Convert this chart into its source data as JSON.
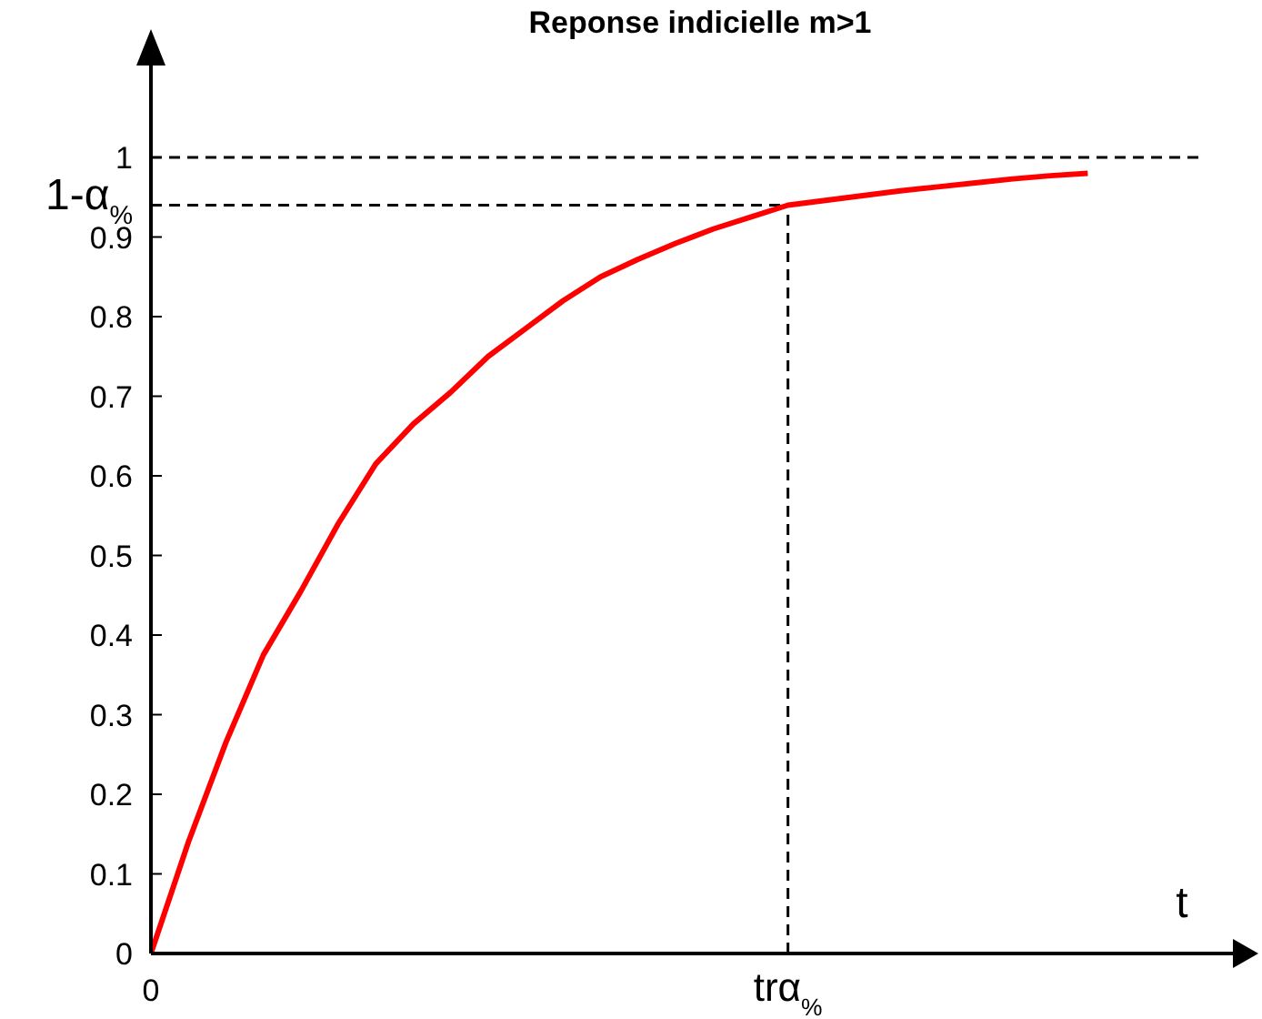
{
  "chart_data": {
    "type": "line",
    "title": "Reponse indicielle m>1",
    "xlabel": "t",
    "categories": [
      "0",
      null,
      null,
      null,
      null,
      null,
      null,
      null,
      null,
      null,
      null,
      null,
      null,
      null,
      null,
      null,
      null,
      "trα$_{%}$",
      null,
      null,
      null,
      null,
      null,
      null,
      null,
      null,
      null,
      null,
      null
    ],
    "series": [
      {
        "color": "#ff0000",
        "values": [
          0,
          0.14,
          0.265,
          0.375,
          0.455,
          0.54,
          0.615,
          0.665,
          0.705,
          0.75,
          0.785,
          0.82,
          0.85,
          0.872,
          0.892,
          0.91,
          0.925,
          0.94,
          0.946,
          0.952,
          0.958,
          0.963,
          0.968,
          0.973,
          0.977,
          0.98,
          null,
          null,
          null
        ]
      }
    ],
    "ylim": [
      0,
      1.12
    ],
    "yticks": [
      0,
      0.1,
      0.2,
      0.3,
      0.4,
      0.5,
      0.6,
      0.7,
      0.8,
      0.9,
      {
        "value": 0.94,
        "label": "1-α$_{%}$"
      },
      1
    ],
    "ref_lines": [
      {
        "axis": "y",
        "value": 1,
        "line_style": "dashed"
      },
      {
        "axis": "y",
        "value": 0.94,
        "line_style": "dashed"
      },
      {
        "axis": "x",
        "value": "trα$_{%}$",
        "line_style": "dashed"
      }
    ],
    "marker": "none",
    "line_style": "solid",
    "grid": false,
    "legend": false
  }
}
